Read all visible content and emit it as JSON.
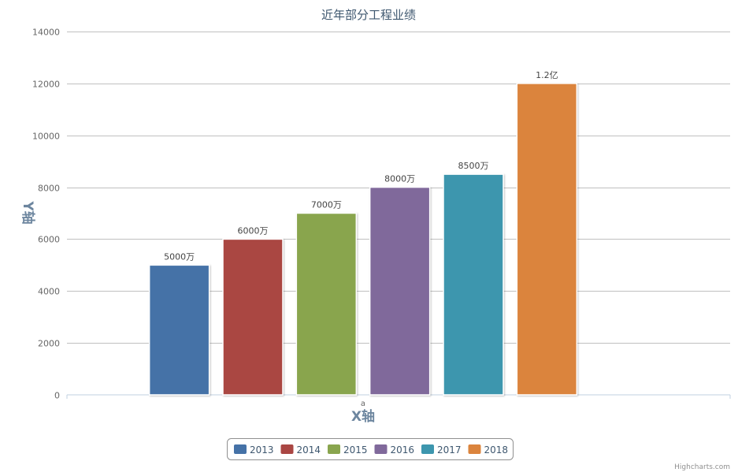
{
  "chart_data": {
    "type": "bar",
    "title": "近年部分工程业绩",
    "xlabel": "X轴",
    "ylabel": "Y轴",
    "categories": [
      "a"
    ],
    "series": [
      {
        "name": "2013",
        "values": [
          5000
        ],
        "color": "#4572A7",
        "data_label": "5000万"
      },
      {
        "name": "2014",
        "values": [
          6000
        ],
        "color": "#AA4643",
        "data_label": "6000万"
      },
      {
        "name": "2015",
        "values": [
          7000
        ],
        "color": "#89A54E",
        "data_label": "7000万"
      },
      {
        "name": "2016",
        "values": [
          8000
        ],
        "color": "#80699B",
        "data_label": "8000万"
      },
      {
        "name": "2017",
        "values": [
          8500
        ],
        "color": "#3D96AE",
        "data_label": "8500万"
      },
      {
        "name": "2018",
        "values": [
          12000
        ],
        "color": "#DB843D",
        "data_label": "1.2亿"
      }
    ],
    "ylim": [
      0,
      14000
    ],
    "y_ticks": [
      0,
      2000,
      4000,
      6000,
      8000,
      10000,
      12000,
      14000
    ],
    "grid": true,
    "legend_position": "bottom-center"
  },
  "credits": "Highcharts.com"
}
